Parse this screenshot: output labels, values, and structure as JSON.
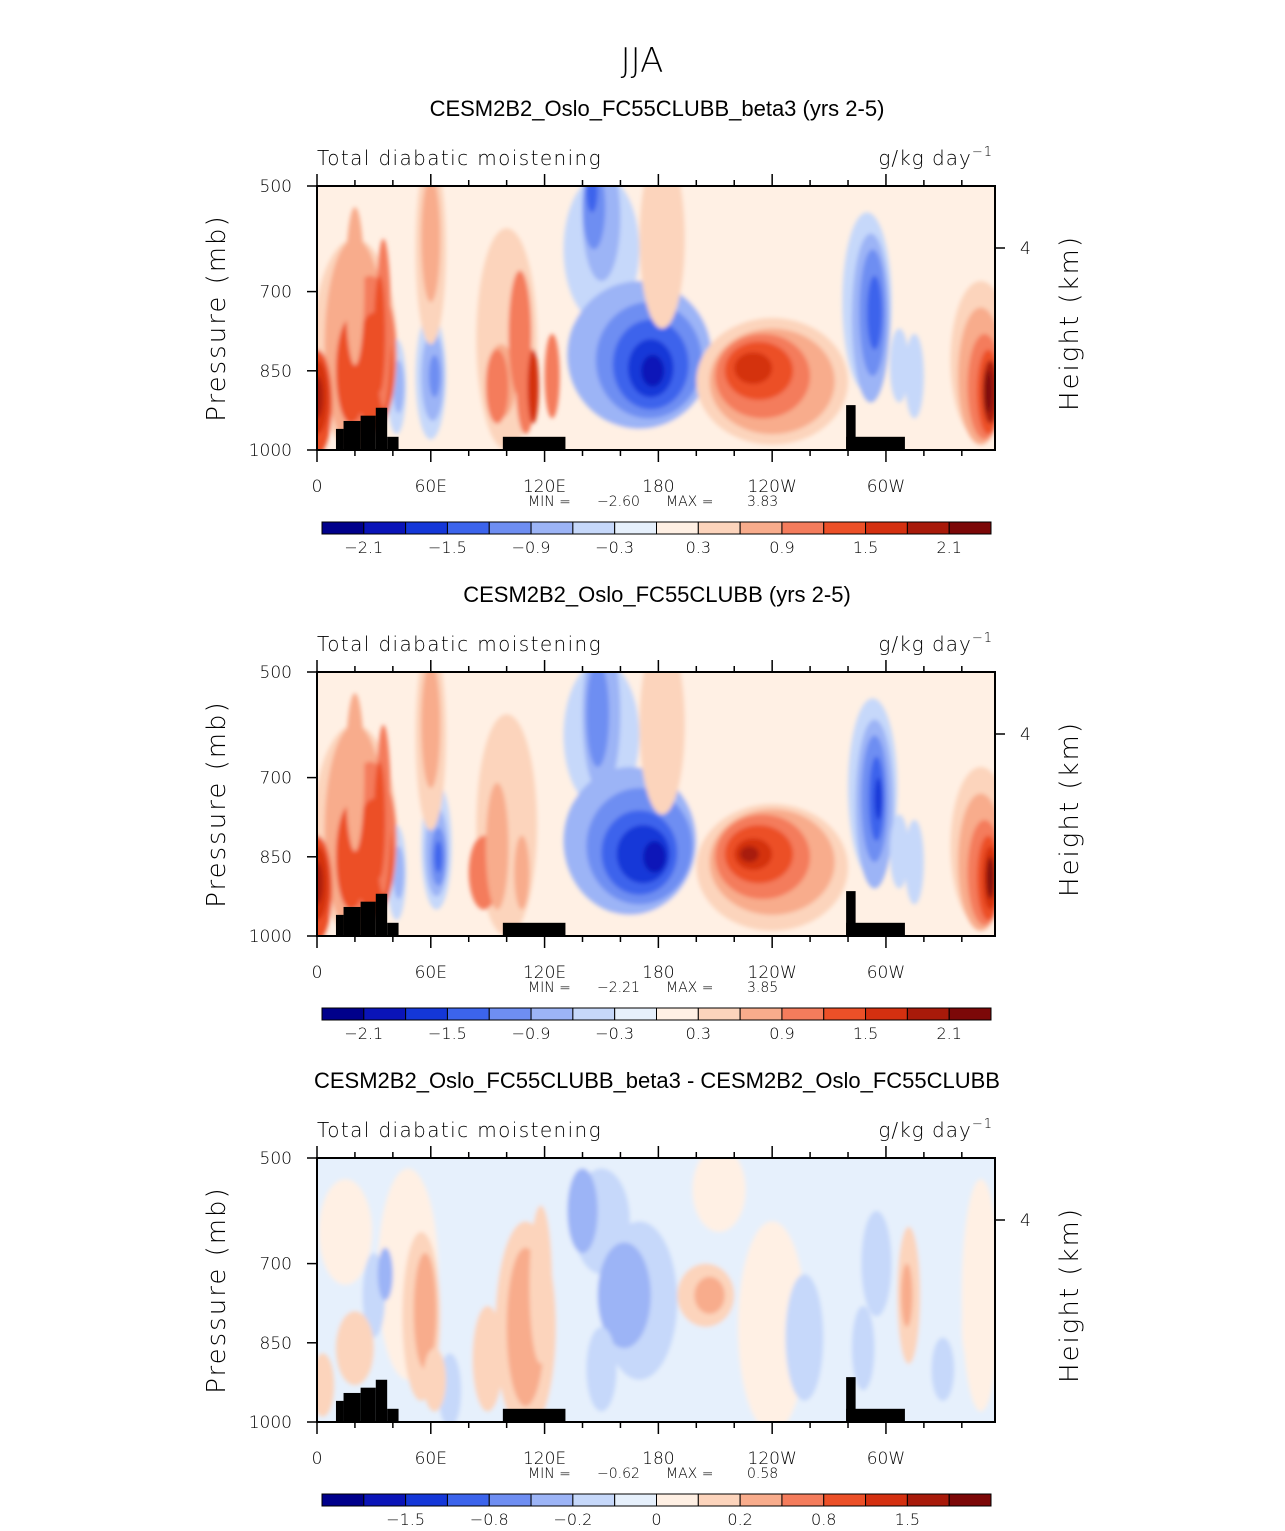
{
  "page_title": "JJA",
  "chart_data": [
    {
      "type": "heatmap",
      "title": "CESM2B2_Oslo_FC55CLUBB_beta3 (yrs 2-5)",
      "left_label": "Total diabatic moistening",
      "units_base": "g/kg day",
      "units_exp": "−1",
      "ylabel": "Pressure (mb)",
      "ylabel_right": "Height (km)",
      "y_ticks": [
        "500",
        "700",
        "850",
        "1000"
      ],
      "y_tick_values": [
        500,
        700,
        850,
        1000
      ],
      "y_right_ticks": [
        "4"
      ],
      "x_ticks": [
        "0",
        "60E",
        "120E",
        "180",
        "120W",
        "60W"
      ],
      "x_tick_values": [
        0,
        60,
        120,
        180,
        240,
        300
      ],
      "xlim": [
        0,
        357.5
      ],
      "ylim": [
        500,
        1000
      ],
      "min_label": "MIN =",
      "min_value": "−2.60",
      "max_label": "MAX =",
      "max_value": "3.83",
      "colorbar_labels": [
        "−2.1",
        "−1.5",
        "−0.9",
        "−0.3",
        "0.3",
        "0.9",
        "1.5",
        "2.1"
      ],
      "colorbar_label_positions": [
        1,
        3,
        5,
        7,
        9,
        11,
        13,
        15
      ],
      "colors": [
        "#00008b",
        "#0a14b8",
        "#1437d8",
        "#3c64ec",
        "#6e8ef2",
        "#9cb4f6",
        "#c6d8fa",
        "#e6f0fc",
        "#fff0e4",
        "#fcd4bc",
        "#f8ac8c",
        "#f47c5c",
        "#ec5028",
        "#d43010",
        "#a81a0a",
        "#7c0808"
      ],
      "min": -2.6,
      "max": 3.83
    },
    {
      "type": "heatmap",
      "title": "CESM2B2_Oslo_FC55CLUBB (yrs 2-5)",
      "left_label": "Total diabatic moistening",
      "units_base": "g/kg day",
      "units_exp": "−1",
      "ylabel": "Pressure (mb)",
      "ylabel_right": "Height (km)",
      "y_ticks": [
        "500",
        "700",
        "850",
        "1000"
      ],
      "y_tick_values": [
        500,
        700,
        850,
        1000
      ],
      "y_right_ticks": [
        "4"
      ],
      "x_ticks": [
        "0",
        "60E",
        "120E",
        "180",
        "120W",
        "60W"
      ],
      "x_tick_values": [
        0,
        60,
        120,
        180,
        240,
        300
      ],
      "xlim": [
        0,
        357.5
      ],
      "ylim": [
        500,
        1000
      ],
      "min_label": "MIN =",
      "min_value": "−2.21",
      "max_label": "MAX =",
      "max_value": "3.85",
      "colorbar_labels": [
        "−2.1",
        "−1.5",
        "−0.9",
        "−0.3",
        "0.3",
        "0.9",
        "1.5",
        "2.1"
      ],
      "colorbar_label_positions": [
        1,
        3,
        5,
        7,
        9,
        11,
        13,
        15
      ],
      "colors": [
        "#00008b",
        "#0a14b8",
        "#1437d8",
        "#3c64ec",
        "#6e8ef2",
        "#9cb4f6",
        "#c6d8fa",
        "#e6f0fc",
        "#fff0e4",
        "#fcd4bc",
        "#f8ac8c",
        "#f47c5c",
        "#ec5028",
        "#d43010",
        "#a81a0a",
        "#7c0808"
      ],
      "min": -2.21,
      "max": 3.85
    },
    {
      "type": "heatmap",
      "title": "CESM2B2_Oslo_FC55CLUBB_beta3 - CESM2B2_Oslo_FC55CLUBB",
      "left_label": "Total diabatic moistening",
      "units_base": "g/kg day",
      "units_exp": "−1",
      "ylabel": "Pressure (mb)",
      "ylabel_right": "Height (km)",
      "y_ticks": [
        "500",
        "700",
        "850",
        "1000"
      ],
      "y_tick_values": [
        500,
        700,
        850,
        1000
      ],
      "y_right_ticks": [
        "4"
      ],
      "x_ticks": [
        "0",
        "60E",
        "120E",
        "180",
        "120W",
        "60W"
      ],
      "x_tick_values": [
        0,
        60,
        120,
        180,
        240,
        300
      ],
      "xlim": [
        0,
        357.5
      ],
      "ylim": [
        500,
        1000
      ],
      "min_label": "MIN =",
      "min_value": "−0.62",
      "max_label": "MAX =",
      "max_value": "0.58",
      "colorbar_labels": [
        "−1.5",
        "−0.8",
        "−0.2",
        "0",
        "0.2",
        "0.8",
        "1.5"
      ],
      "colorbar_label_positions": [
        2,
        4,
        6,
        8,
        10,
        12,
        14
      ],
      "colors": [
        "#00008b",
        "#0a14b8",
        "#1437d8",
        "#3c64ec",
        "#6e8ef2",
        "#9cb4f6",
        "#c6d8fa",
        "#e6f0fc",
        "#fff0e4",
        "#fcd4bc",
        "#f8ac8c",
        "#f47c5c",
        "#ec5028",
        "#d43010",
        "#a81a0a",
        "#7c0808"
      ],
      "min": -0.62,
      "max": 0.58
    }
  ]
}
